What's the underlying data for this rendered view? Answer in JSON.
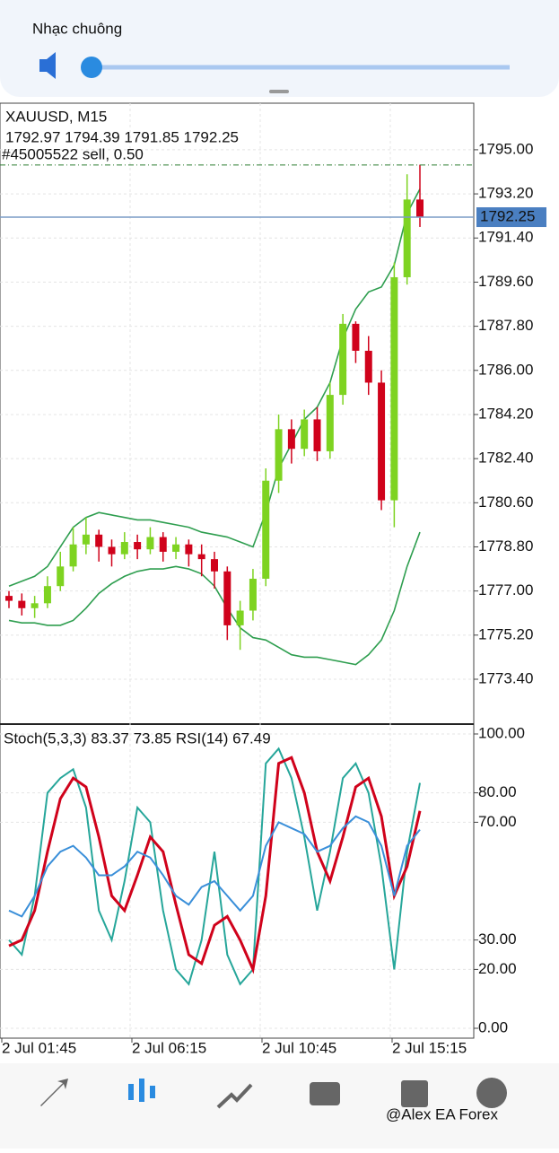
{
  "volume_panel": {
    "title": "Nhạc chuông"
  },
  "watermark": "@Alex EA Forex",
  "chart_data": [
    {
      "type": "candlestick",
      "title": "XAUUSD, M15",
      "subtitle": "1792.97 1794.39 1791.85 1792.25",
      "annotation": "#45005522 sell, 0.50",
      "open": [
        1776.8,
        1776.6,
        1776.3,
        1776.5,
        1777.2,
        1778.0,
        1778.9,
        1779.3,
        1778.8,
        1778.5,
        1779.0,
        1778.7,
        1779.2,
        1778.6,
        1778.9,
        1778.5,
        1778.3,
        1777.8,
        1775.6,
        1776.2,
        1777.5,
        1781.5,
        1783.6,
        1782.8,
        1784.0,
        1782.7,
        1785.0,
        1787.9,
        1786.8,
        1785.5,
        1780.7,
        1789.8,
        1792.97
      ],
      "high": [
        1777.0,
        1776.9,
        1776.8,
        1777.6,
        1778.6,
        1779.6,
        1780.0,
        1779.5,
        1779.1,
        1779.4,
        1779.3,
        1779.6,
        1779.4,
        1779.2,
        1779.1,
        1778.9,
        1778.6,
        1778.0,
        1776.6,
        1777.9,
        1782.0,
        1784.2,
        1784.0,
        1784.4,
        1784.5,
        1785.5,
        1788.3,
        1788.0,
        1787.4,
        1786.0,
        1790.4,
        1794.0,
        1794.39
      ],
      "low": [
        1776.3,
        1776.0,
        1775.9,
        1776.3,
        1777.0,
        1777.8,
        1778.5,
        1778.2,
        1778.0,
        1778.3,
        1778.3,
        1778.5,
        1778.2,
        1778.3,
        1778.0,
        1777.6,
        1777.1,
        1775.0,
        1774.6,
        1775.8,
        1777.2,
        1781.0,
        1782.2,
        1782.5,
        1782.3,
        1782.4,
        1784.6,
        1786.3,
        1785.0,
        1780.3,
        1779.6,
        1789.5,
        1791.85
      ],
      "close": [
        1776.6,
        1776.3,
        1776.5,
        1777.2,
        1778.0,
        1778.9,
        1779.3,
        1778.8,
        1778.5,
        1779.0,
        1778.7,
        1779.2,
        1778.6,
        1778.9,
        1778.5,
        1778.3,
        1777.8,
        1775.6,
        1776.2,
        1777.5,
        1781.5,
        1783.6,
        1782.8,
        1784.0,
        1782.7,
        1785.0,
        1787.9,
        1786.8,
        1785.5,
        1780.7,
        1789.8,
        1792.97,
        1792.25
      ],
      "up_color": "#7ed321",
      "down_color": "#d0021b",
      "bands": {
        "color": "#2e9e4f",
        "upper": [
          1777.2,
          1777.4,
          1777.6,
          1778.0,
          1778.8,
          1779.6,
          1780.0,
          1780.2,
          1780.1,
          1780.0,
          1779.9,
          1779.9,
          1779.8,
          1779.7,
          1779.6,
          1779.4,
          1779.3,
          1779.2,
          1779.0,
          1778.8,
          1780.2,
          1782.0,
          1783.0,
          1784.0,
          1784.5,
          1785.5,
          1787.3,
          1788.5,
          1789.2,
          1789.4,
          1790.3,
          1792.4,
          1793.4
        ],
        "lower": [
          1775.8,
          1775.7,
          1775.7,
          1775.6,
          1775.6,
          1775.8,
          1776.3,
          1776.9,
          1777.3,
          1777.6,
          1777.8,
          1777.9,
          1777.9,
          1778.0,
          1777.9,
          1777.7,
          1777.2,
          1776.3,
          1775.5,
          1775.1,
          1775.0,
          1774.7,
          1774.4,
          1774.3,
          1774.3,
          1774.2,
          1774.1,
          1774.0,
          1774.4,
          1775.0,
          1776.2,
          1778.0,
          1779.4
        ]
      },
      "last_price": 1792.25,
      "order_price": 1794.38,
      "ylim": [
        1771.57,
        1796.9
      ],
      "yticks": [
        {
          "value": 1795,
          "label": "1795.00"
        },
        {
          "value": 1793.2,
          "label": "1793.20"
        },
        {
          "value": 1791.4,
          "label": "1791.40"
        },
        {
          "value": 1789.6,
          "label": "1789.60"
        },
        {
          "value": 1787.8,
          "label": "1787.80"
        },
        {
          "value": 1786,
          "label": "1786.00"
        },
        {
          "value": 1784.2,
          "label": "1784.20"
        },
        {
          "value": 1782.4,
          "label": "1782.40"
        },
        {
          "value": 1780.6,
          "label": "1780.60"
        },
        {
          "value": 1778.8,
          "label": "1778.80"
        },
        {
          "value": 1777,
          "label": "1777.00"
        },
        {
          "value": 1775.2,
          "label": "1775.20"
        },
        {
          "value": 1773.4,
          "label": "1773.40"
        }
      ],
      "grid": true
    },
    {
      "type": "line",
      "title": "Stoch(5,3,3) 83.37 73.85 RSI(14) 67.49",
      "series": [
        {
          "color": "#26a69a",
          "values": [
            30,
            25,
            45,
            80,
            85,
            88,
            75,
            40,
            30,
            50,
            75,
            70,
            40,
            20,
            15,
            30,
            60,
            25,
            15,
            20,
            90,
            95,
            85,
            65,
            40,
            60,
            85,
            90,
            80,
            55,
            20,
            60,
            83.37
          ]
        },
        {
          "color": "#d0021b",
          "values": [
            28,
            30,
            40,
            60,
            78,
            85,
            82,
            65,
            45,
            40,
            52,
            65,
            60,
            42,
            25,
            22,
            35,
            38,
            30,
            20,
            45,
            90,
            92,
            80,
            60,
            50,
            65,
            82,
            85,
            72,
            45,
            55,
            73.85
          ]
        },
        {
          "color": "#3a8fd9",
          "values": [
            40,
            38,
            45,
            55,
            60,
            62,
            58,
            52,
            52,
            55,
            60,
            58,
            52,
            45,
            42,
            48,
            50,
            45,
            40,
            45,
            62,
            70,
            68,
            66,
            60,
            62,
            68,
            72,
            70,
            62,
            45,
            62,
            67.49
          ]
        }
      ],
      "ylim": [
        0,
        100
      ],
      "yticks": [
        {
          "value": 100,
          "label": "100.00"
        },
        {
          "value": 80,
          "label": "80.00"
        },
        {
          "value": 70,
          "label": "70.00"
        },
        {
          "value": 30,
          "label": "30.00"
        },
        {
          "value": 20,
          "label": "20.00"
        },
        {
          "value": 0,
          "label": "0.00"
        }
      ],
      "xtick_labels": [
        "2 Jul 01:45",
        "2 Jul 06:15",
        "2 Jul 10:45",
        "2 Jul 15:15"
      ]
    }
  ]
}
